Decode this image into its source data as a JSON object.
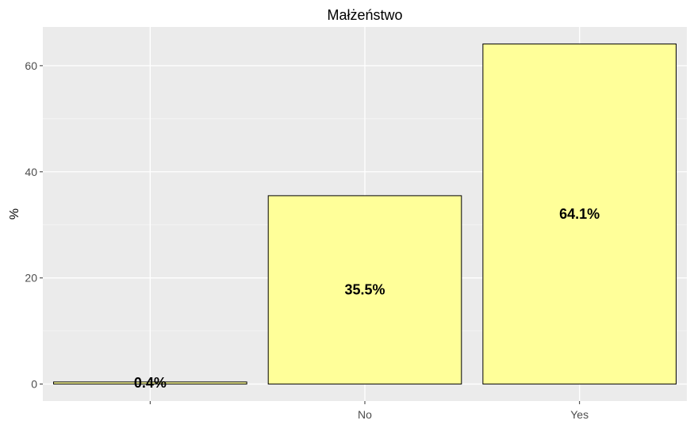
{
  "chart_data": {
    "type": "bar",
    "title": "Małżeństwo",
    "xlabel": "",
    "ylabel": "%",
    "categories": [
      "",
      "No",
      "Yes"
    ],
    "values": [
      0.4,
      35.5,
      64.1
    ],
    "data_labels": [
      "0.4%",
      "35.5%",
      "64.1%"
    ],
    "ylim": [
      -3.2,
      67.3
    ],
    "yticks": [
      0,
      20,
      40,
      60
    ],
    "grid": true,
    "legend": "none",
    "colors": {
      "bar_fill": "#ffff99",
      "bar_stroke": "#000000",
      "panel_background": "#ebebeb",
      "grid_major": "#ffffff",
      "grid_minor": "#f5f5f5"
    }
  }
}
